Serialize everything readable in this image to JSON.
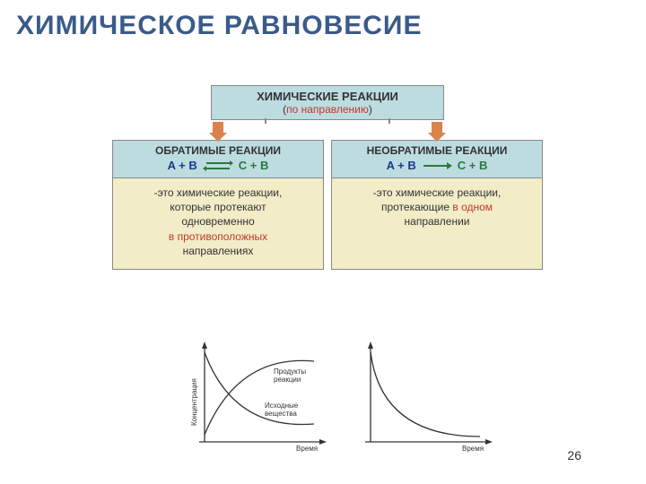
{
  "title": "ХИМИЧЕСКОЕ РАВНОВЕСИЕ",
  "pageNumber": "26",
  "topBox": {
    "line1": "ХИМИЧЕСКИЕ РЕАКЦИИ",
    "line2_open": "(",
    "line2_red": "по направлению",
    "line2_close": ")"
  },
  "colors": {
    "title": "#3a5a8a",
    "headerBg": "#bcdce0",
    "bodyBg": "#f2ecc7",
    "border": "#888",
    "red": "#c0392b",
    "blue": "#1a3a8a",
    "green": "#2a7a3a",
    "arrowOrange": "#d9824a",
    "arrowGray": "#888"
  },
  "left": {
    "header": "ОБРАТИМЫЕ РЕАКЦИИ",
    "eqn": {
      "lhs": "A + B",
      "rhs": "C + B",
      "arrows": "double"
    },
    "body_p1": "-это химические реакции,",
    "body_p2": "которые протекают",
    "body_p3": "одновременно",
    "body_red": "в противоположных",
    "body_p4": "направлениях"
  },
  "right": {
    "header": "НЕОБРАТИМЫЕ РЕАКЦИИ",
    "eqn": {
      "lhs": "A + B",
      "rhs": "C + B",
      "arrows": "single"
    },
    "body_p1": "-это химические реакции,",
    "body_p2a": "протекающие ",
    "body_red": "в одном",
    "body_p3": "направлении"
  },
  "graphLeft": {
    "ylabel": "Концентрация",
    "xlabel": "Время",
    "label1": "Продукты",
    "label1b": "реакции",
    "label2": "Исходные",
    "label2b": "вещества",
    "curve1": {
      "start": [
        18,
        110
      ],
      "ctrl": [
        55,
        20
      ],
      "end": [
        140,
        28
      ]
    },
    "curve2": {
      "start": [
        18,
        18
      ],
      "ctrl": [
        50,
        105
      ],
      "end": [
        140,
        98
      ]
    },
    "stroke": "#333",
    "stroke_width": 1.3
  },
  "graphRight": {
    "ylabel": "",
    "xlabel": "Время",
    "curve": {
      "start": [
        18,
        18
      ],
      "ctrl": [
        30,
        112
      ],
      "end": [
        140,
        112
      ]
    },
    "stroke": "#333",
    "stroke_width": 1.3
  }
}
